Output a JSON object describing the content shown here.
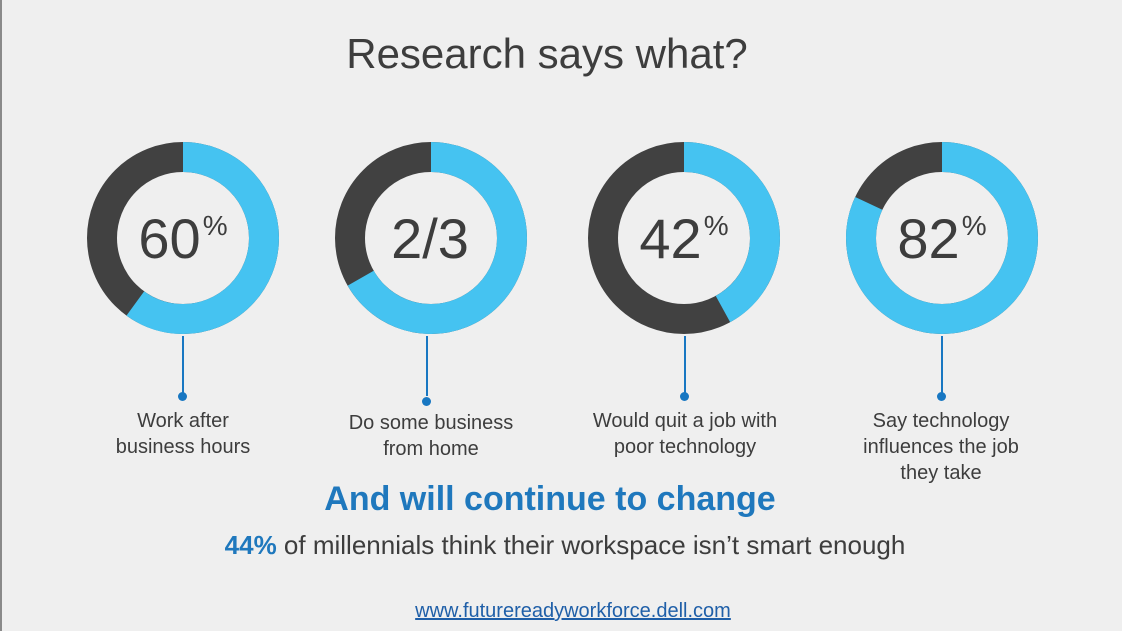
{
  "title": "Research says what?",
  "colors": {
    "accent": "#45c3f1",
    "dark": "#414141",
    "blue": "#1f78bd"
  },
  "chart_data": {
    "type": "pie",
    "variant": "donut",
    "series": [
      {
        "value_label": "60",
        "unit": "%",
        "fraction": 0.6,
        "caption": [
          "Work after",
          "business hours"
        ]
      },
      {
        "value_label": "2/3",
        "unit": "",
        "fraction": 0.667,
        "caption": [
          "Do some business",
          "from home"
        ]
      },
      {
        "value_label": "42",
        "unit": "%",
        "fraction": 0.42,
        "caption": [
          "Would quit a job with",
          "poor technology"
        ]
      },
      {
        "value_label": "82",
        "unit": "%",
        "fraction": 0.82,
        "caption": [
          "Say technology",
          "influences the job",
          "they take"
        ]
      }
    ]
  },
  "headline": "And will continue to change",
  "subline": {
    "accent": "44%",
    "rest": " of millennials think their workspace isn’t smart enough"
  },
  "footer_link": "www.futurereadyworkforce.dell.com"
}
